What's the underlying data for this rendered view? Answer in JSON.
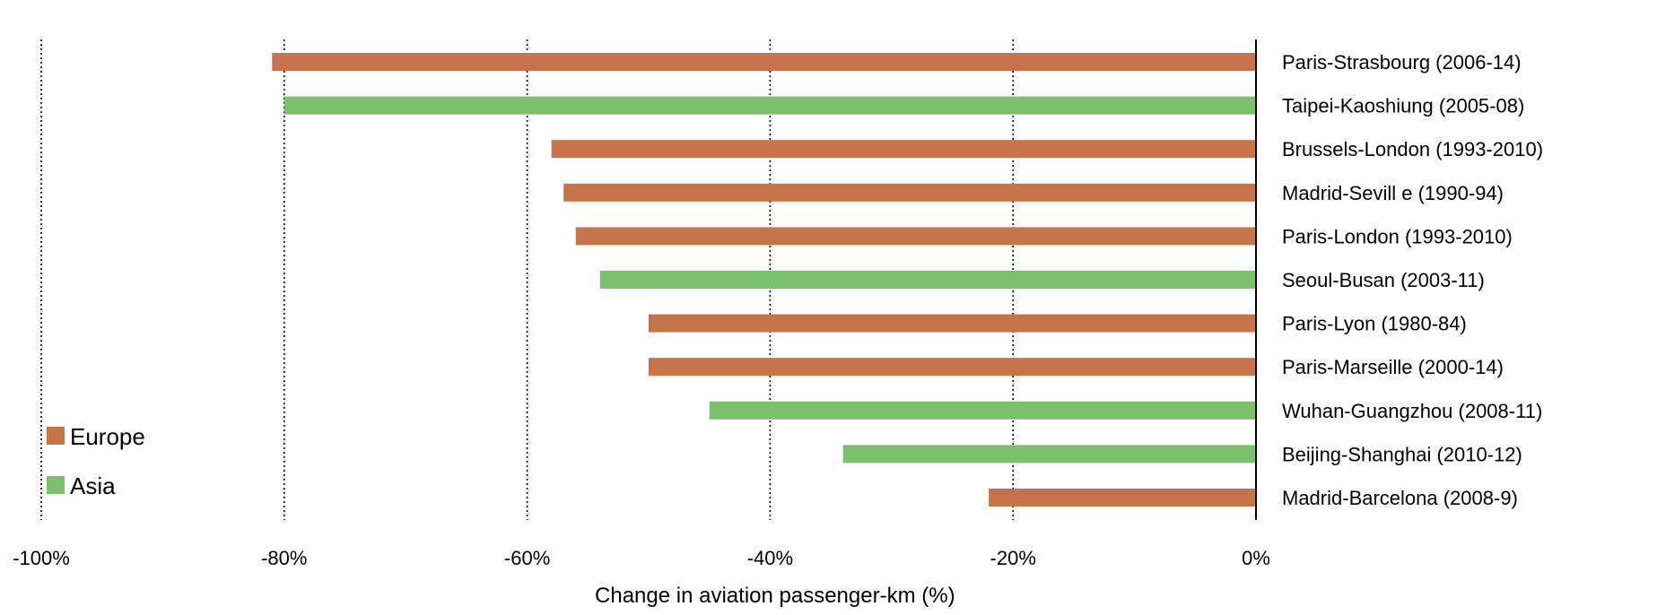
{
  "chart_data": {
    "type": "bar",
    "orientation": "horizontal",
    "xlabel": "Change in aviation passenger-km (%)",
    "ylabel": "",
    "xlim": [
      -100,
      0
    ],
    "x_ticks": [
      -100,
      -80,
      -60,
      -40,
      -20,
      0
    ],
    "x_tick_labels": [
      "-100%",
      "-80%",
      "-60%",
      "-40%",
      "-20%",
      "0%"
    ],
    "gridlines": "vertical dotted",
    "legend_position": "bottom-left",
    "legend": [
      {
        "name": "Europe",
        "color": "#C8744A"
      },
      {
        "name": "Asia",
        "color": "#7CBF6E"
      }
    ],
    "bars": [
      {
        "label": "Paris-Strasbourg (2006-14)",
        "value": -81,
        "group": "Europe"
      },
      {
        "label": "Taipei-Kaoshiung (2005-08)",
        "value": -80,
        "group": "Asia"
      },
      {
        "label": "Brussels-London (1993-2010)",
        "value": -58,
        "group": "Europe"
      },
      {
        "label": "Madrid-Sevill e (1990-94)",
        "value": -57,
        "group": "Europe"
      },
      {
        "label": "Paris-London (1993-2010)",
        "value": -56,
        "group": "Europe"
      },
      {
        "label": "Seoul-Busan (2003-11)",
        "value": -54,
        "group": "Asia"
      },
      {
        "label": "Paris-Lyon (1980-84)",
        "value": -50,
        "group": "Europe"
      },
      {
        "label": "Paris-Marseille (2000-14)",
        "value": -50,
        "group": "Europe"
      },
      {
        "label": "Wuhan-Guangzhou (2008-11)",
        "value": -45,
        "group": "Asia"
      },
      {
        "label": "Beijing-Shanghai (2010-12)",
        "value": -34,
        "group": "Asia"
      },
      {
        "label": "Madrid-Barcelona (2008-9)",
        "value": -22,
        "group": "Europe"
      }
    ]
  }
}
